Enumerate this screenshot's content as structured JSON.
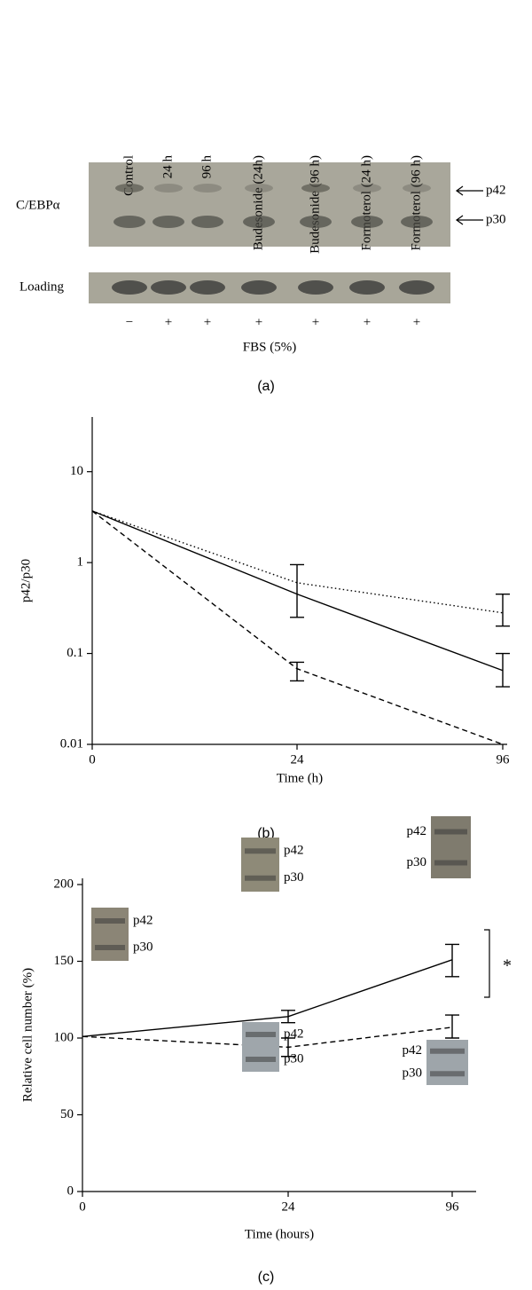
{
  "blot": {
    "lanes": [
      "Control",
      "24 h",
      "96 h",
      "Budesonide (24h)",
      "Budesonide (96 h)",
      "Formoterol (24 h)",
      "Formoterol (96 h)"
    ],
    "rows": [
      "C/EBPα",
      "Loading"
    ],
    "bands": [
      "p42",
      "p30"
    ],
    "fbs": [
      "−",
      "+",
      "+",
      "+",
      "+",
      "+",
      "+"
    ],
    "fbs_label": "FBS (5%)",
    "panel": "(a)"
  },
  "chart_data": [
    {
      "type": "line",
      "panel": "(b)",
      "xlabel": "Time (h)",
      "ylabel": "p42/p30",
      "categories": [
        "0",
        "24",
        "96"
      ],
      "log_scale": true,
      "ylim": [
        0.01,
        40
      ],
      "yticks": [
        0.01,
        0.1,
        1,
        10
      ],
      "grid": false,
      "series": [
        {
          "style": "solid",
          "color": "#000000",
          "values": [
            3.7,
            0.45,
            0.065
          ],
          "lower": [
            null,
            0.25,
            0.043
          ],
          "upper": [
            null,
            0.95,
            0.1
          ]
        },
        {
          "style": "dotted",
          "color": "#000000",
          "values": [
            3.7,
            0.6,
            0.28
          ],
          "lower": [
            null,
            null,
            0.2
          ],
          "upper": [
            null,
            null,
            0.45
          ]
        },
        {
          "style": "dashed",
          "color": "#000000",
          "values": [
            3.7,
            0.068,
            0.01
          ],
          "lower": [
            null,
            0.05,
            null
          ],
          "upper": [
            null,
            0.08,
            null
          ]
        }
      ]
    },
    {
      "type": "line",
      "panel": "(c)",
      "xlabel": "Time (hours)",
      "ylabel": "Relative cell number (%)",
      "categories": [
        "0",
        "24",
        "96"
      ],
      "log_scale": false,
      "ylim": [
        0,
        200
      ],
      "yticks": [
        0,
        50,
        100,
        150,
        200
      ],
      "grid": false,
      "annotation": "*",
      "series": [
        {
          "style": "solid",
          "color": "#000000",
          "values": [
            101,
            114,
            151
          ],
          "lower": [
            null,
            110,
            140
          ],
          "upper": [
            null,
            118,
            161
          ]
        },
        {
          "style": "dashed",
          "color": "#000000",
          "values": [
            101,
            94,
            107
          ],
          "lower": [
            null,
            88,
            100
          ],
          "upper": [
            null,
            100,
            115
          ]
        }
      ],
      "insets": [
        {
          "labels": [
            "p42",
            "p30"
          ]
        },
        {
          "labels": [
            "p42",
            "p30"
          ]
        },
        {
          "labels": [
            "p42",
            "p30"
          ]
        },
        {
          "labels": [
            "p42",
            "p30"
          ]
        },
        {
          "labels": [
            "p42",
            "p30"
          ]
        }
      ]
    }
  ]
}
